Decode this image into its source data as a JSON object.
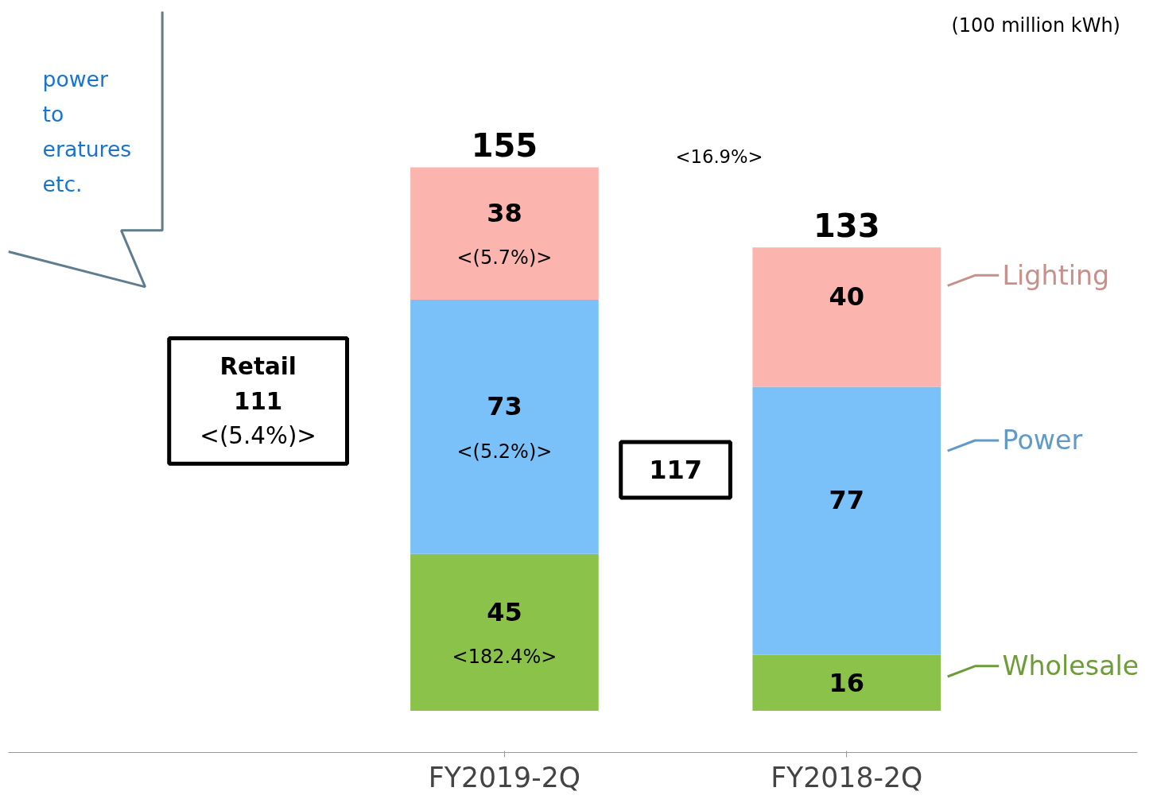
{
  "chart_data": {
    "type": "bar",
    "stacked": true,
    "categories": [
      "FY2019-2Q",
      "FY2018-2Q"
    ],
    "series": [
      {
        "name": "Wholesale",
        "color": "#8bc34a",
        "values": [
          45,
          16
        ]
      },
      {
        "name": "Power",
        "color": "#7bc1f9",
        "values": [
          73,
          77
        ]
      },
      {
        "name": "Lighting",
        "color": "#fbb4ae",
        "values": [
          38,
          40
        ]
      }
    ],
    "data_labels": true,
    "totals": [
      "155",
      "133"
    ],
    "legend": false,
    "grid": false,
    "annotations": [
      "(100 million kWh)",
      "<16.9%>",
      "power\nto\neratures\netc.",
      "Retail\n111\n<(5.4%)>",
      "117",
      "<(5.7%)>",
      "<(5.2%)>",
      "<182.4%>"
    ]
  }
}
